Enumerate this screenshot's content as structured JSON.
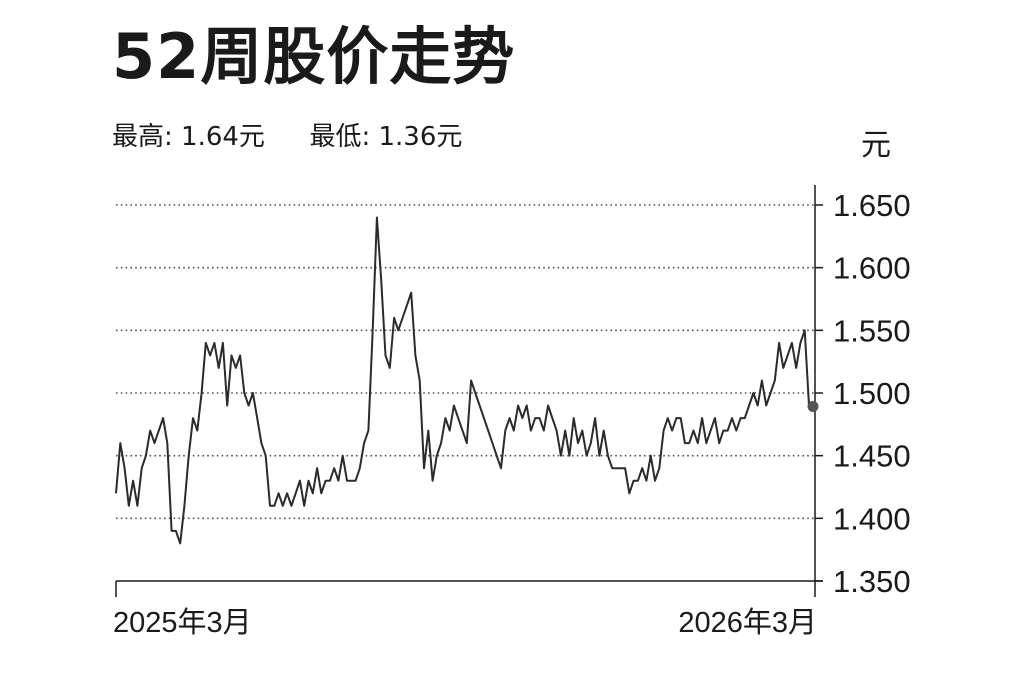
{
  "title": "52周股价走势",
  "subtitle": {
    "high_label": "最高:",
    "high_value": "1.64元",
    "low_label": "最低:",
    "low_value": "1.36元"
  },
  "chart_data": {
    "type": "line",
    "title": "52周股价走势",
    "unit_label": "元",
    "ylim": [
      1.35,
      1.65
    ],
    "yticks": [
      "1.650",
      "1.600",
      "1.550",
      "1.500",
      "1.450",
      "1.400",
      "1.350"
    ],
    "ytick_values": [
      1.65,
      1.6,
      1.55,
      1.5,
      1.45,
      1.4,
      1.35
    ],
    "grid": "horizontal dotted",
    "x_start_label": "2025年3月",
    "x_end_label": "2026年3月",
    "colors": {
      "line": "#2b2b2b",
      "grid": "#555555",
      "endpoint": "#555555"
    },
    "series": [
      {
        "values": [
          1.42,
          1.46,
          1.44,
          1.41,
          1.43,
          1.41,
          1.44,
          1.45,
          1.47,
          1.46,
          1.47,
          1.48,
          1.46,
          1.39,
          1.39,
          1.38,
          1.41,
          1.45,
          1.48,
          1.47,
          1.5,
          1.54,
          1.53,
          1.54,
          1.52,
          1.54,
          1.49,
          1.53,
          1.52,
          1.53,
          1.5,
          1.49,
          1.5,
          1.48,
          1.46,
          1.45,
          1.41,
          1.41,
          1.42,
          1.41,
          1.42,
          1.41,
          1.42,
          1.43,
          1.41,
          1.43,
          1.42,
          1.44,
          1.42,
          1.43,
          1.43,
          1.44,
          1.43,
          1.45,
          1.43,
          1.43,
          1.43,
          1.44,
          1.46,
          1.47,
          1.55,
          1.64,
          1.59,
          1.53,
          1.52,
          1.56,
          1.55,
          1.56,
          1.57,
          1.58,
          1.53,
          1.51,
          1.44,
          1.47,
          1.43,
          1.45,
          1.46,
          1.48,
          1.47,
          1.49,
          1.48,
          1.47,
          1.46,
          1.51,
          1.5,
          1.49,
          1.48,
          1.47,
          1.46,
          1.45,
          1.44,
          1.47,
          1.48,
          1.47,
          1.49,
          1.48,
          1.49,
          1.47,
          1.48,
          1.48,
          1.47,
          1.49,
          1.48,
          1.47,
          1.45,
          1.47,
          1.45,
          1.48,
          1.46,
          1.47,
          1.45,
          1.46,
          1.48,
          1.45,
          1.47,
          1.45,
          1.44,
          1.44,
          1.44,
          1.44,
          1.42,
          1.43,
          1.43,
          1.44,
          1.43,
          1.45,
          1.43,
          1.44,
          1.47,
          1.48,
          1.47,
          1.48,
          1.48,
          1.46,
          1.46,
          1.47,
          1.46,
          1.48,
          1.46,
          1.47,
          1.48,
          1.46,
          1.47,
          1.47,
          1.48,
          1.47,
          1.48,
          1.48,
          1.49,
          1.5,
          1.49,
          1.51,
          1.49,
          1.5,
          1.51,
          1.54,
          1.52,
          1.53,
          1.54,
          1.52,
          1.54,
          1.55,
          1.49
        ]
      }
    ]
  }
}
